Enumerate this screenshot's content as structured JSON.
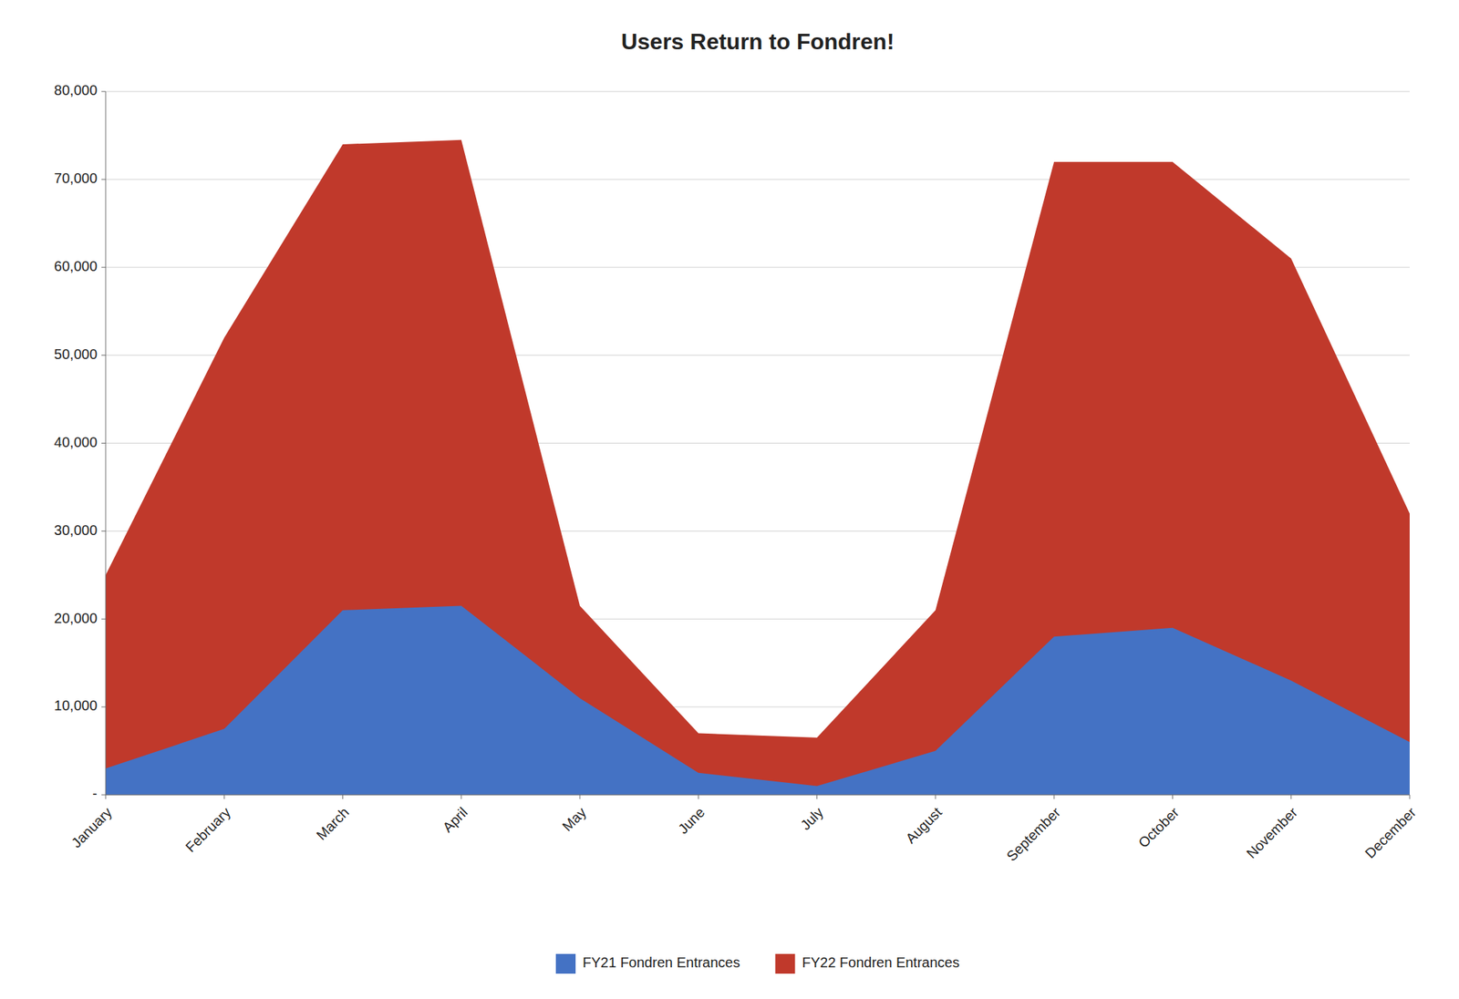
{
  "chart_data": {
    "type": "area",
    "title": "Users Return to Fondren!",
    "categories": [
      "January",
      "February",
      "March",
      "April",
      "May",
      "June",
      "July",
      "August",
      "September",
      "October",
      "November",
      "December"
    ],
    "series": [
      {
        "name": "FY21 Fondren Entrances",
        "color": "#4472c4",
        "values": [
          3000,
          7500,
          21000,
          21500,
          11000,
          2500,
          1000,
          5000,
          18000,
          19000,
          13000,
          6000
        ]
      },
      {
        "name": "FY22 Fondren Entrances",
        "color": "#c0392b",
        "values": [
          25000,
          52000,
          74000,
          74500,
          21500,
          7000,
          6500,
          21000,
          72000,
          72000,
          61000,
          32000
        ]
      }
    ],
    "stacked": false,
    "ylim": [
      0,
      80000
    ],
    "yticks": [
      {
        "value": 0,
        "label": "-"
      },
      {
        "value": 10000,
        "label": "10,000"
      },
      {
        "value": 20000,
        "label": "20,000"
      },
      {
        "value": 30000,
        "label": "30,000"
      },
      {
        "value": 40000,
        "label": "40,000"
      },
      {
        "value": 50000,
        "label": "50,000"
      },
      {
        "value": 60000,
        "label": "60,000"
      },
      {
        "value": 70000,
        "label": "70,000"
      },
      {
        "value": 80000,
        "label": "80,000"
      }
    ],
    "grid": true,
    "legend": "bottom"
  }
}
